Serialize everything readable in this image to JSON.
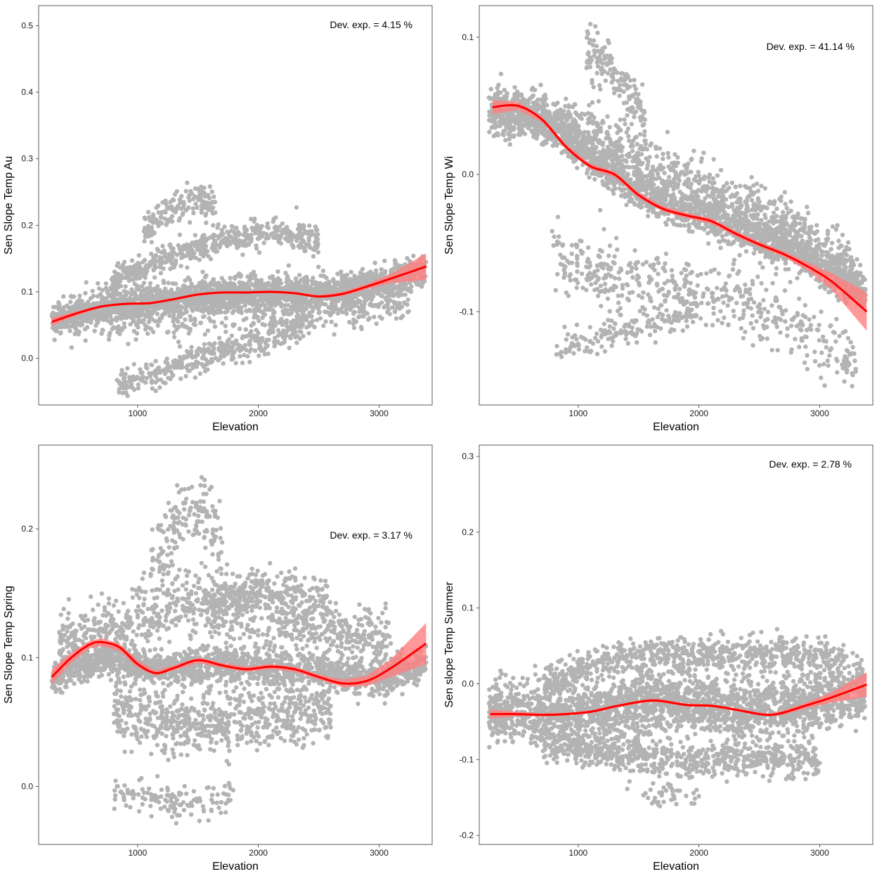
{
  "chart_data": [
    {
      "type": "scatter",
      "xlabel": "Elevation",
      "ylabel": "Sen Slope Temp Au",
      "xlim": [
        180,
        3440
      ],
      "ylim": [
        -0.07,
        0.53
      ],
      "xticks": [
        1000,
        2000,
        3000
      ],
      "xtick_labels": [
        "1000",
        "2000",
        "3000"
      ],
      "yticks": [
        0.0,
        0.1,
        0.2,
        0.3,
        0.4,
        0.5
      ],
      "ytick_labels": [
        "0.0",
        "0.1",
        "0.2",
        "0.3",
        "0.4",
        "0.5"
      ],
      "annotation": "Dev. exp. = 4.15 %",
      "grid": false,
      "colors": {
        "points": "#b3b3b3",
        "smooth_line": "#ff0000",
        "ribbon": "#ff8080"
      },
      "point_clusters": [
        {
          "xmin": 290,
          "xmax": 3390,
          "ymid": [
            0.055,
            0.08,
            0.085,
            0.095,
            0.1,
            0.098,
            0.11,
            0.13
          ],
          "spread": 0.02,
          "n": 1900
        },
        {
          "xmin": 450,
          "xmax": 3250,
          "ymid": [
            0.06,
            0.07,
            0.075,
            0.08,
            0.085,
            0.09,
            0.095
          ],
          "spread": 0.035,
          "n": 900
        },
        {
          "xmin": 780,
          "xmax": 2500,
          "ymid": [
            0.11,
            0.15,
            0.175,
            0.19,
            0.18
          ],
          "spread": 0.018,
          "n": 520
        },
        {
          "xmin": 1050,
          "xmax": 1650,
          "ymid": [
            0.19,
            0.22,
            0.24,
            0.225
          ],
          "spread": 0.022,
          "n": 160
        },
        {
          "xmin": 820,
          "xmax": 2450,
          "ymid": [
            -0.04,
            -0.02,
            0.01,
            0.03,
            0.05
          ],
          "spread": 0.02,
          "n": 380
        }
      ],
      "smooth": {
        "x": [
          290,
          500,
          700,
          900,
          1100,
          1300,
          1500,
          1700,
          1900,
          2100,
          2300,
          2500,
          2700,
          2900,
          3100,
          3390
        ],
        "y": [
          0.055,
          0.068,
          0.078,
          0.082,
          0.083,
          0.089,
          0.096,
          0.099,
          0.099,
          0.1,
          0.098,
          0.093,
          0.097,
          0.108,
          0.12,
          0.138
        ],
        "band": [
          0.006,
          0.003,
          0.002,
          0.002,
          0.002,
          0.002,
          0.002,
          0.002,
          0.002,
          0.002,
          0.002,
          0.002,
          0.003,
          0.004,
          0.007,
          0.02
        ]
      }
    },
    {
      "type": "scatter",
      "xlabel": "Elevation",
      "ylabel": "Sen Slope Temp Wi",
      "xlim": [
        180,
        3440
      ],
      "ylim": [
        -0.168,
        0.123
      ],
      "xticks": [
        1000,
        2000,
        3000
      ],
      "xtick_labels": [
        "1000",
        "2000",
        "3000"
      ],
      "yticks": [
        -0.1,
        0.0,
        0.1
      ],
      "ytick_labels": [
        "-0.1",
        "0.0",
        "0.1"
      ],
      "annotation": "Dev. exp. = 41.14 %",
      "grid": false,
      "colors": {
        "points": "#b3b3b3",
        "smooth_line": "#ff0000",
        "ribbon": "#ff8080"
      },
      "point_clusters": [
        {
          "xmin": 260,
          "xmax": 3380,
          "ymid": [
            0.045,
            0.04,
            0.01,
            -0.015,
            -0.03,
            -0.045,
            -0.062,
            -0.085
          ],
          "spread": 0.013,
          "n": 2000
        },
        {
          "xmin": 300,
          "xmax": 3300,
          "ymid": [
            0.05,
            0.045,
            0.03,
            0.01,
            -0.01,
            -0.025,
            -0.045,
            -0.07
          ],
          "spread": 0.016,
          "n": 900
        },
        {
          "xmin": 1060,
          "xmax": 1560,
          "ymid": [
            0.09,
            0.08,
            0.06,
            0.04
          ],
          "spread": 0.018,
          "n": 160
        },
        {
          "xmin": 780,
          "xmax": 3300,
          "ymid": [
            -0.055,
            -0.075,
            -0.085,
            -0.09,
            -0.11,
            -0.14
          ],
          "spread": 0.022,
          "n": 520
        },
        {
          "xmin": 820,
          "xmax": 2000,
          "ymid": [
            -0.125,
            -0.12,
            -0.11,
            -0.1
          ],
          "spread": 0.01,
          "n": 150
        }
      ],
      "smooth": {
        "x": [
          290,
          500,
          700,
          900,
          1100,
          1300,
          1500,
          1700,
          1900,
          2100,
          2300,
          2500,
          2700,
          2900,
          3100,
          3390
        ],
        "y": [
          0.049,
          0.05,
          0.04,
          0.02,
          0.006,
          0.0,
          -0.015,
          -0.025,
          -0.03,
          -0.034,
          -0.043,
          -0.051,
          -0.058,
          -0.067,
          -0.078,
          -0.1
        ],
        "band": [
          0.005,
          0.003,
          0.002,
          0.002,
          0.002,
          0.002,
          0.002,
          0.002,
          0.002,
          0.002,
          0.002,
          0.002,
          0.002,
          0.003,
          0.006,
          0.014
        ]
      }
    },
    {
      "type": "scatter",
      "xlabel": "Elevation",
      "ylabel": "Sen Slope Temp Spring",
      "xlim": [
        180,
        3440
      ],
      "ylim": [
        -0.045,
        0.265
      ],
      "xticks": [
        1000,
        2000,
        3000
      ],
      "xtick_labels": [
        "1000",
        "2000",
        "3000"
      ],
      "yticks": [
        0.0,
        0.1,
        0.2
      ],
      "ytick_labels": [
        "0.0",
        "0.1",
        "0.2"
      ],
      "annotation": "Dev. exp. = 3.17 %",
      "grid": false,
      "colors": {
        "points": "#b3b3b3",
        "smooth_line": "#ff0000",
        "ribbon": "#ff8080"
      },
      "point_clusters": [
        {
          "xmin": 290,
          "xmax": 3390,
          "ymid": [
            0.085,
            0.1,
            0.09,
            0.095,
            0.092,
            0.09,
            0.082,
            0.095
          ],
          "spread": 0.012,
          "n": 1700
        },
        {
          "xmin": 350,
          "xmax": 3100,
          "ymid": [
            0.11,
            0.13,
            0.14,
            0.135,
            0.12,
            0.11
          ],
          "spread": 0.025,
          "n": 900
        },
        {
          "xmin": 800,
          "xmax": 2600,
          "ymid": [
            0.06,
            0.05,
            0.05,
            0.055,
            0.06
          ],
          "spread": 0.022,
          "n": 700
        },
        {
          "xmin": 1100,
          "xmax": 1700,
          "ymid": [
            0.17,
            0.2,
            0.22,
            0.19
          ],
          "spread": 0.025,
          "n": 170
        },
        {
          "xmin": 1600,
          "xmax": 2600,
          "ymid": [
            0.14,
            0.15,
            0.15,
            0.14
          ],
          "spread": 0.015,
          "n": 240
        },
        {
          "xmin": 800,
          "xmax": 1800,
          "ymid": [
            0.0,
            -0.01,
            -0.015,
            -0.01
          ],
          "spread": 0.012,
          "n": 130
        }
      ],
      "smooth": {
        "x": [
          290,
          450,
          600,
          700,
          850,
          1000,
          1150,
          1300,
          1500,
          1700,
          1900,
          2100,
          2300,
          2500,
          2700,
          2900,
          3100,
          3390
        ],
        "y": [
          0.085,
          0.1,
          0.11,
          0.112,
          0.108,
          0.095,
          0.088,
          0.092,
          0.098,
          0.094,
          0.091,
          0.093,
          0.091,
          0.085,
          0.08,
          0.082,
          0.092,
          0.111
        ],
        "band": [
          0.006,
          0.004,
          0.003,
          0.003,
          0.003,
          0.003,
          0.002,
          0.002,
          0.002,
          0.002,
          0.002,
          0.002,
          0.002,
          0.002,
          0.003,
          0.004,
          0.007,
          0.016
        ]
      }
    },
    {
      "type": "scatter",
      "xlabel": "Elevation",
      "ylabel": "Sen slope Temp Summer",
      "xlim": [
        180,
        3440
      ],
      "ylim": [
        -0.212,
        0.315
      ],
      "xticks": [
        1000,
        2000,
        3000
      ],
      "xtick_labels": [
        "1000",
        "2000",
        "3000"
      ],
      "yticks": [
        -0.2,
        -0.1,
        0.0,
        0.1,
        0.2,
        0.3
      ],
      "ytick_labels": [
        "-0.2",
        "-0.1",
        "0.0",
        "0.1",
        "0.2",
        "0.3"
      ],
      "annotation": "Dev. exp. = 2.78 %",
      "grid": false,
      "colors": {
        "points": "#b3b3b3",
        "smooth_line": "#ff0000",
        "ribbon": "#ff8080"
      },
      "point_clusters": [
        {
          "xmin": 260,
          "xmax": 3380,
          "ymid": [
            -0.04,
            -0.04,
            -0.038,
            -0.025,
            -0.028,
            -0.035,
            -0.025,
            -0.005
          ],
          "spread": 0.035,
          "n": 2400
        },
        {
          "xmin": 700,
          "xmax": 3200,
          "ymid": [
            0.0,
            0.03,
            0.04,
            0.04,
            0.04,
            0.03
          ],
          "spread": 0.02,
          "n": 700
        },
        {
          "xmin": 700,
          "xmax": 3000,
          "ymid": [
            -0.08,
            -0.09,
            -0.1,
            -0.1,
            -0.1
          ],
          "spread": 0.02,
          "n": 700
        },
        {
          "xmin": 1400,
          "xmax": 2000,
          "ymid": [
            -0.13,
            -0.15,
            -0.15
          ],
          "spread": 0.018,
          "n": 40
        }
      ],
      "smooth": {
        "x": [
          270,
          500,
          700,
          900,
          1100,
          1300,
          1500,
          1600,
          1700,
          1900,
          2100,
          2300,
          2500,
          2600,
          2700,
          2900,
          3100,
          3390
        ],
        "y": [
          -0.04,
          -0.04,
          -0.041,
          -0.04,
          -0.037,
          -0.03,
          -0.024,
          -0.022,
          -0.023,
          -0.028,
          -0.029,
          -0.034,
          -0.04,
          -0.041,
          -0.038,
          -0.028,
          -0.018,
          -0.001
        ],
        "band": [
          0.006,
          0.003,
          0.002,
          0.002,
          0.002,
          0.002,
          0.002,
          0.002,
          0.002,
          0.002,
          0.002,
          0.002,
          0.002,
          0.002,
          0.003,
          0.004,
          0.007,
          0.016
        ]
      }
    }
  ]
}
